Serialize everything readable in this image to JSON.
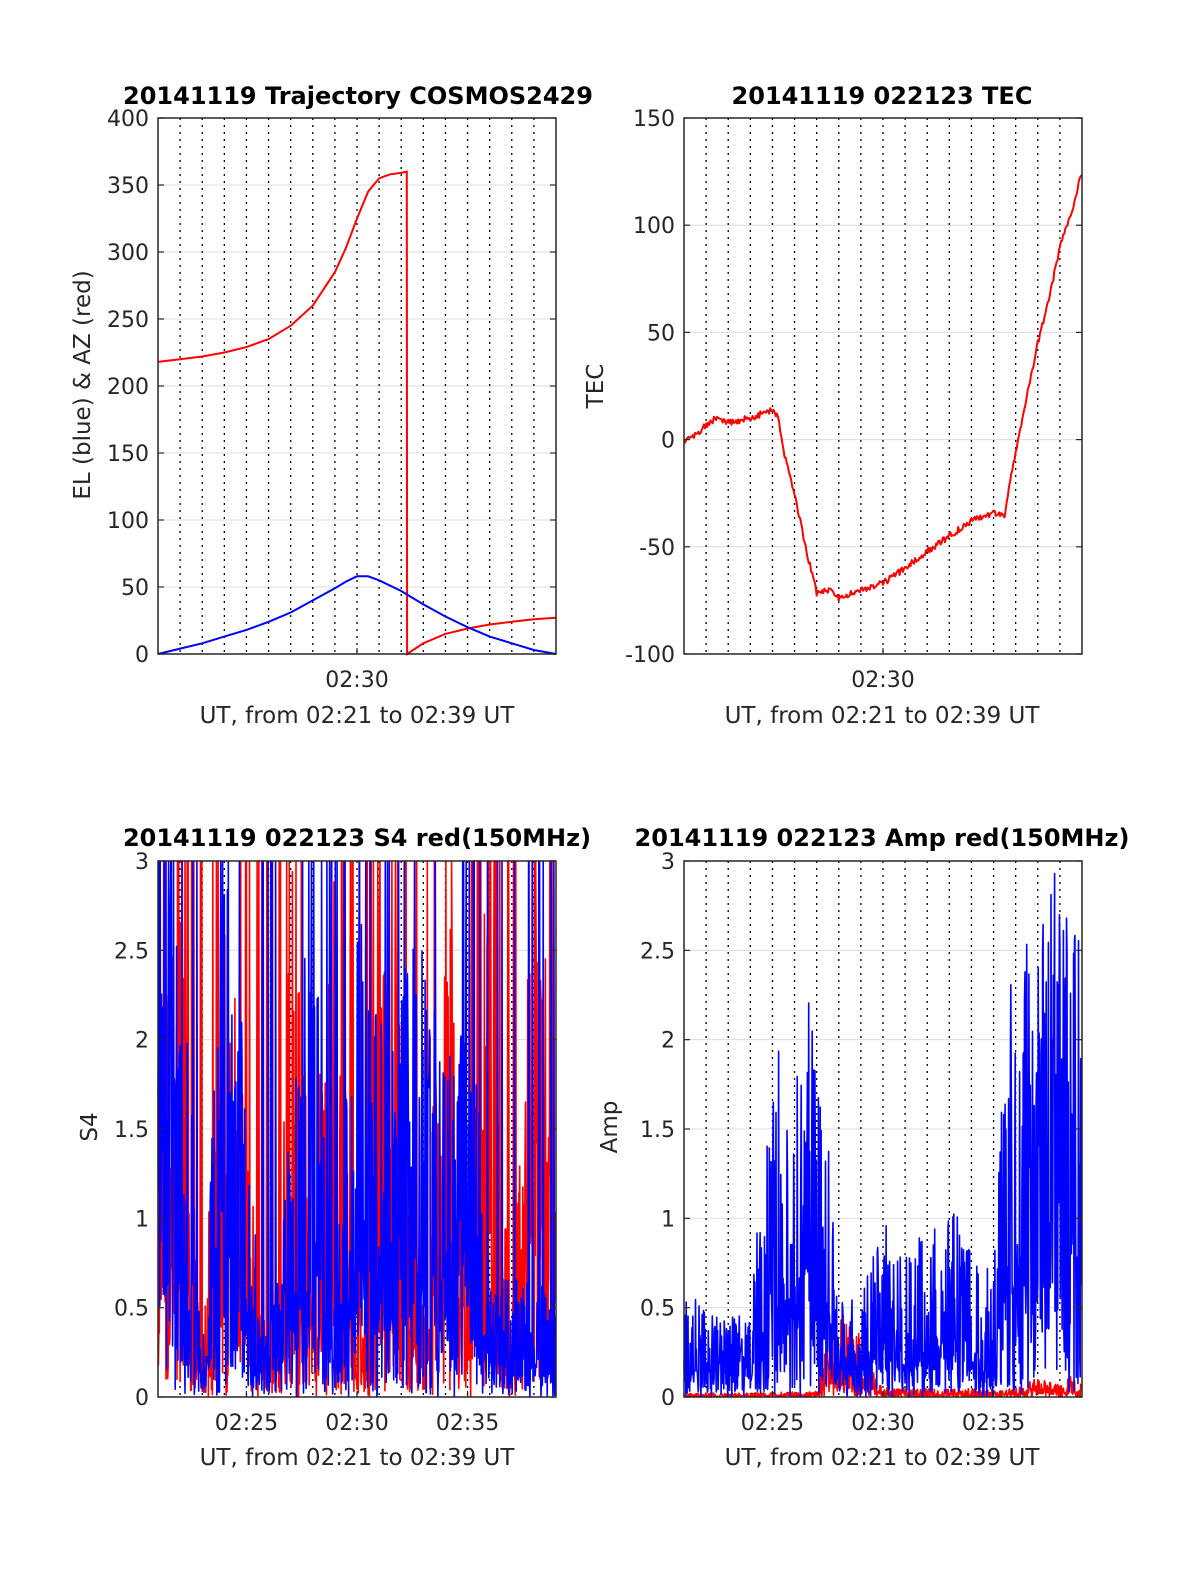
{
  "chart_data": [
    {
      "type": "line",
      "title": "20141119 Trajectory COSMOS2429",
      "xlabel": "UT, from 02:21 to 02:39 UT",
      "ylabel": "EL (blue) & AZ (red)",
      "xlim": [
        "02:21",
        "02:39"
      ],
      "ylim": [
        0,
        400
      ],
      "yticks": [
        "0",
        "50",
        "100",
        "150",
        "200",
        "250",
        "300",
        "350",
        "400"
      ],
      "xticks": [
        {
          "value": "02:30",
          "label": "02:30"
        }
      ],
      "grid": "dotted vertical every minute, light horizontal at y ticks",
      "series": [
        {
          "color": "#ff0000",
          "x": [
            "02:21",
            "02:22",
            "02:23",
            "02:24",
            "02:25",
            "02:26",
            "02:27",
            "02:28",
            "02:29",
            "02:29:30",
            "02:30",
            "02:30:30",
            "02:31",
            "02:31:30",
            "02:32",
            "02:32:15",
            "02:32:16",
            "02:33",
            "02:34",
            "02:35",
            "02:36",
            "02:37",
            "02:38",
            "02:39"
          ],
          "y": [
            218,
            220,
            222,
            225,
            229,
            235,
            245,
            260,
            285,
            303,
            325,
            345,
            355,
            358,
            359,
            360,
            0,
            8,
            15,
            19,
            22,
            24,
            26,
            27
          ]
        },
        {
          "color": "#0000ff",
          "x": [
            "02:21",
            "02:22",
            "02:23",
            "02:24",
            "02:25",
            "02:26",
            "02:27",
            "02:28",
            "02:29",
            "02:29:30",
            "02:30",
            "02:30:30",
            "02:31",
            "02:32",
            "02:33",
            "02:34",
            "02:35",
            "02:36",
            "02:37",
            "02:38",
            "02:39"
          ],
          "y": [
            0,
            4,
            8,
            13,
            18,
            24,
            31,
            40,
            49,
            54,
            58,
            58,
            55,
            47,
            37,
            28,
            20,
            13,
            8,
            3,
            0
          ]
        }
      ]
    },
    {
      "type": "line",
      "title": "20141119 022123 TEC",
      "xlabel": "UT, from 02:21 to 02:39 UT",
      "ylabel": "TEC",
      "xlim": [
        "02:21",
        "02:39"
      ],
      "ylim": [
        -100,
        150
      ],
      "yticks": [
        "-100",
        "-50",
        "0",
        "50",
        "100",
        "150"
      ],
      "xticks": [
        {
          "value": "02:30",
          "label": "02:30"
        }
      ],
      "grid": "dotted vertical every minute, light horizontal at y ticks",
      "series": [
        {
          "color": "#ff0000",
          "x": [
            "02:21",
            "02:21:30",
            "02:22",
            "02:22:30",
            "02:23",
            "02:23:30",
            "02:24",
            "02:25",
            "02:25:15",
            "02:25:30",
            "02:26",
            "02:26:30",
            "02:27",
            "02:27:30",
            "02:28",
            "02:29",
            "02:30",
            "02:31",
            "02:32",
            "02:33",
            "02:34",
            "02:35",
            "02:35:30",
            "02:36",
            "02:36:30",
            "02:37",
            "02:37:30",
            "02:38",
            "02:38:30",
            "02:39"
          ],
          "y": [
            -1,
            2,
            7,
            10,
            8,
            9,
            10,
            14,
            10,
            -5,
            -25,
            -50,
            -72,
            -70,
            -74,
            -70,
            -67,
            -60,
            -52,
            -45,
            -38,
            -34,
            -35,
            -5,
            20,
            45,
            65,
            90,
            105,
            125
          ]
        }
      ]
    },
    {
      "type": "line",
      "title": "20141119 022123 S4 red(150MHz)",
      "xlabel": "UT, from 02:21 to 02:39 UT",
      "ylabel": "S4",
      "xlim": [
        "02:21",
        "02:39"
      ],
      "ylim": [
        0,
        3
      ],
      "yticks": [
        "0",
        "0.5",
        "1",
        "1.5",
        "2",
        "2.5",
        "3"
      ],
      "xticks": [
        {
          "value": "02:25",
          "label": "02:25"
        },
        {
          "value": "02:30",
          "label": "02:30"
        },
        {
          "value": "02:35",
          "label": "02:35"
        }
      ],
      "grid": "dotted vertical every minute, light horizontal at y ticks",
      "series": [
        {
          "color": "#ff0000",
          "x": [
            "02:21",
            "02:22",
            "02:23",
            "02:24",
            "02:25",
            "02:25:30",
            "02:26",
            "02:26:30",
            "02:27",
            "02:28",
            "02:29",
            "02:30",
            "02:31",
            "02:32",
            "02:33",
            "02:34",
            "02:35",
            "02:36",
            "02:37",
            "02:38",
            "02:39"
          ],
          "y": [
            1.6,
            2.9,
            0.3,
            2.8,
            1.5,
            0.7,
            0.65,
            0.6,
            2.9,
            1.2,
            2.7,
            0.4,
            2.5,
            1.9,
            0.6,
            2.8,
            1.1,
            2.9,
            0.5,
            2.9,
            2.2
          ]
        },
        {
          "color": "#0000ff",
          "x": [
            "02:21",
            "02:22",
            "02:23",
            "02:24",
            "02:25",
            "02:25:30",
            "02:26",
            "02:26:30",
            "02:27",
            "02:28",
            "02:29",
            "02:30",
            "02:31",
            "02:32",
            "02:33",
            "02:34",
            "02:35",
            "02:36",
            "02:37",
            "02:38",
            "02:39"
          ],
          "y": [
            2.6,
            2.9,
            0.2,
            2.8,
            1.8,
            0.62,
            0.6,
            0.58,
            1.5,
            2.8,
            0.5,
            2.7,
            1.9,
            2.2,
            2.4,
            1.8,
            2.5,
            0.6,
            0.62,
            0.6,
            0.55
          ]
        }
      ]
    },
    {
      "type": "line",
      "title": "20141119 022123 Amp red(150MHz)",
      "xlabel": "UT, from 02:21 to 02:39 UT",
      "ylabel": "Amp",
      "xlim": [
        "02:21",
        "02:39"
      ],
      "ylim": [
        0,
        3
      ],
      "yticks": [
        "0",
        "0.5",
        "1",
        "1.5",
        "2",
        "2.5",
        "3"
      ],
      "xticks": [
        {
          "value": "02:25",
          "label": "02:25"
        },
        {
          "value": "02:30",
          "label": "02:30"
        },
        {
          "value": "02:35",
          "label": "02:35"
        }
      ],
      "grid": "dotted vertical every minute, light horizontal at y ticks",
      "series": [
        {
          "color": "#ff0000",
          "x": [
            "02:21",
            "02:24",
            "02:27",
            "02:28",
            "02:30",
            "02:33",
            "02:36",
            "02:37",
            "02:38",
            "02:39"
          ],
          "y": [
            0.02,
            0.02,
            0.03,
            0.55,
            0.05,
            0.04,
            0.05,
            0.1,
            0.06,
            0.15
          ]
        },
        {
          "color": "#0000ff",
          "x": [
            "02:21",
            "02:22",
            "02:23",
            "02:24",
            "02:25",
            "02:25:30",
            "02:26",
            "02:26:30",
            "02:27",
            "02:27:30",
            "02:28",
            "02:29",
            "02:30",
            "02:31",
            "02:32",
            "02:33",
            "02:34",
            "02:35",
            "02:35:30",
            "02:36",
            "02:36:30",
            "02:37",
            "02:38",
            "02:39"
          ],
          "y": [
            0.55,
            0.45,
            0.4,
            0.45,
            1.8,
            1.9,
            1.6,
            2.15,
            1.7,
            1.4,
            0.5,
            0.5,
            0.9,
            0.7,
            0.9,
            1.0,
            0.8,
            0.6,
            1.9,
            2.3,
            2.5,
            2.3,
            2.8,
            2.4
          ]
        }
      ]
    }
  ]
}
